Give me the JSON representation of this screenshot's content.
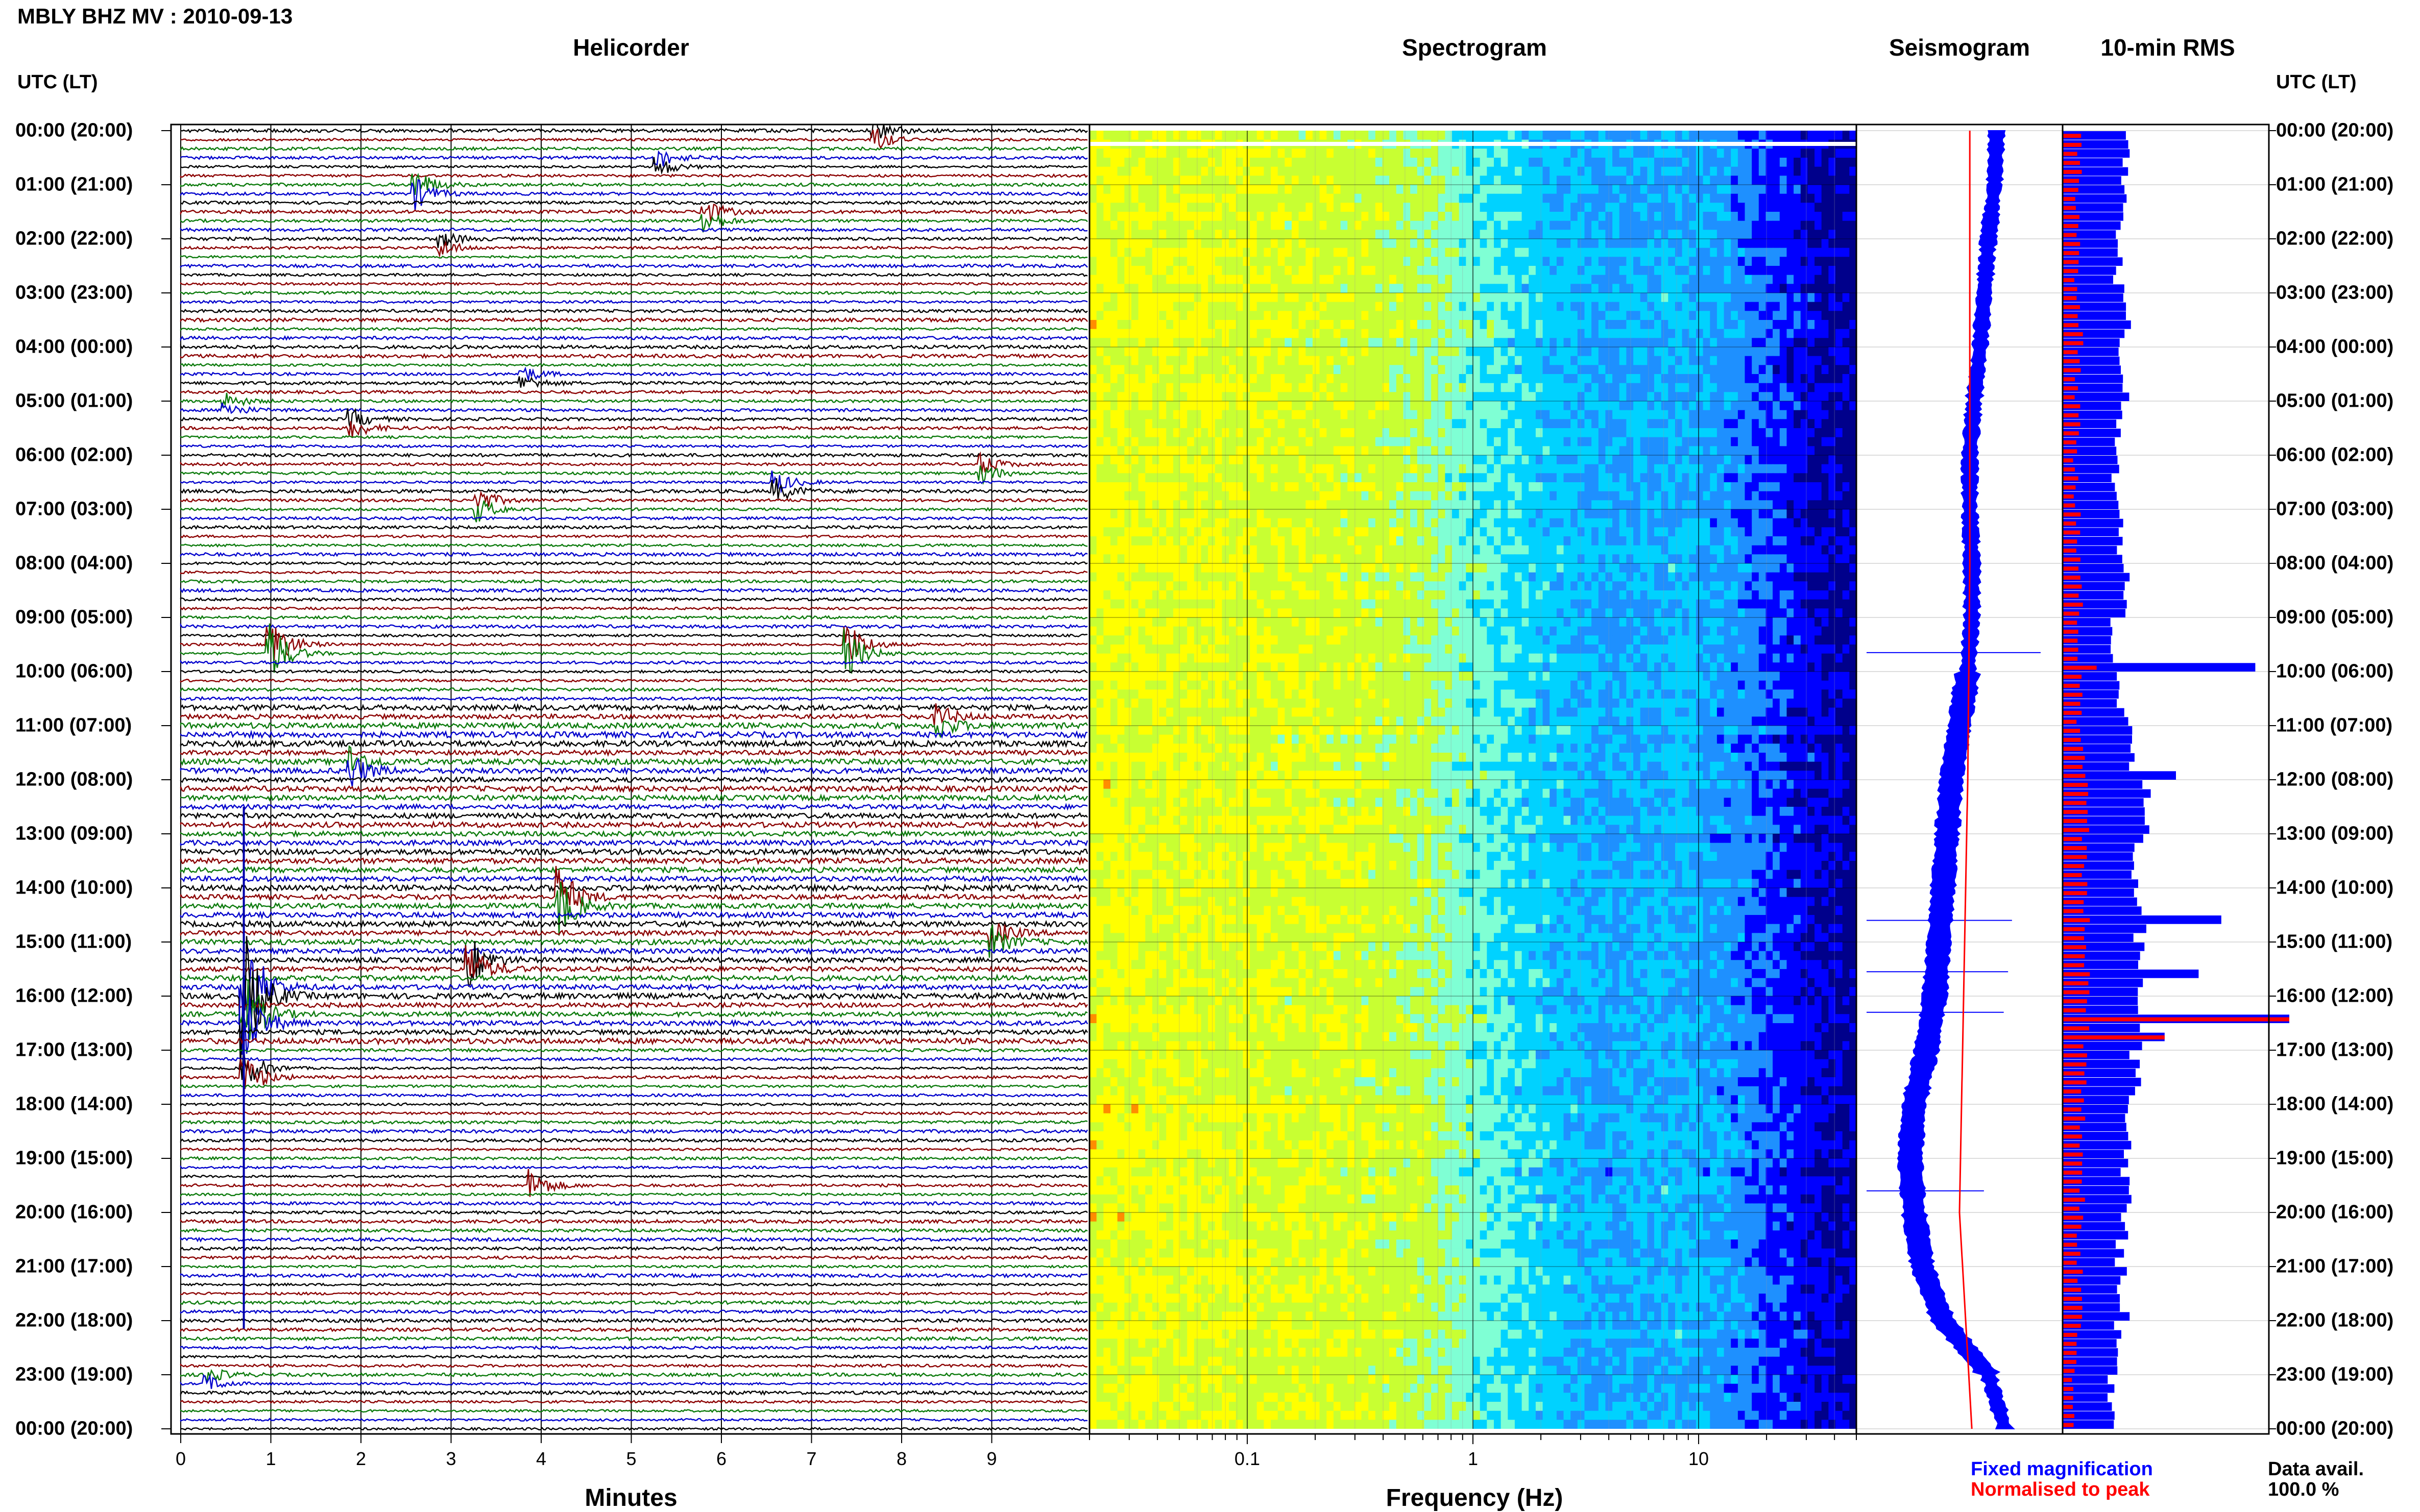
{
  "header": {
    "title": "MBLY BHZ MV : 2010-09-13",
    "left_axis_title": "UTC (LT)",
    "right_axis_title": "UTC (LT)"
  },
  "panels": {
    "helicorder": "Helicorder",
    "spectrogram": "Spectrogram",
    "seismogram": "Seismogram",
    "rms": "10-min RMS"
  },
  "hour_labels": [
    "00:00 (20:00)",
    "01:00 (21:00)",
    "02:00 (22:00)",
    "03:00 (23:00)",
    "04:00 (00:00)",
    "05:00 (01:00)",
    "06:00 (02:00)",
    "07:00 (03:00)",
    "08:00 (04:00)",
    "09:00 (05:00)",
    "10:00 (06:00)",
    "11:00 (07:00)",
    "12:00 (08:00)",
    "13:00 (09:00)",
    "14:00 (10:00)",
    "15:00 (11:00)",
    "16:00 (12:00)",
    "17:00 (13:00)",
    "18:00 (14:00)",
    "19:00 (15:00)",
    "20:00 (16:00)",
    "21:00 (17:00)",
    "22:00 (18:00)",
    "23:00 (19:00)",
    "00:00 (20:00)"
  ],
  "legend": {
    "fixed": "Fixed magnification",
    "normalised": "Normalised to peak",
    "avail_label": "Data avail.",
    "avail_value": "100.0 %"
  },
  "colors": {
    "trace_cycle": [
      "#000000",
      "#8b0000",
      "#0b7a0b",
      "#0000cc"
    ],
    "fixed": "#0000ff",
    "normalised": "#ff0000"
  },
  "chart_data": [
    {
      "type": "line",
      "name": "Helicorder",
      "xlabel": "Minutes",
      "x_ticks": [
        0,
        1,
        2,
        3,
        4,
        5,
        6,
        7,
        8,
        9
      ],
      "xlim": [
        0,
        10
      ],
      "lines_per_hour": 6,
      "y_range_hours": [
        0,
        24
      ],
      "events": [
        {
          "hour": 0.02,
          "minute": 7.7,
          "amp": 0.6
        },
        {
          "hour": 0.55,
          "minute": 5.3,
          "amp": 0.5
        },
        {
          "hour": 1.1,
          "minute": 2.6,
          "amp": 0.8
        },
        {
          "hour": 1.55,
          "minute": 5.8,
          "amp": 0.7
        },
        {
          "hour": 2.15,
          "minute": 2.9,
          "amp": 0.4
        },
        {
          "hour": 4.6,
          "minute": 3.8,
          "amp": 0.4
        },
        {
          "hour": 5.05,
          "minute": 0.5,
          "amp": 0.4
        },
        {
          "hour": 5.45,
          "minute": 1.9,
          "amp": 0.5
        },
        {
          "hour": 6.3,
          "minute": 8.9,
          "amp": 0.5
        },
        {
          "hour": 6.65,
          "minute": 6.6,
          "amp": 0.6
        },
        {
          "hour": 6.85,
          "minute": 3.3,
          "amp": 0.6
        },
        {
          "hour": 9.55,
          "minute": 1.0,
          "amp": 1.6
        },
        {
          "hour": 9.6,
          "minute": 7.4,
          "amp": 1.2
        },
        {
          "hour": 10.85,
          "minute": 8.4,
          "amp": 0.6
        },
        {
          "hour": 11.8,
          "minute": 1.9,
          "amp": 0.8
        },
        {
          "hour": 14.3,
          "minute": 4.2,
          "amp": 1.6
        },
        {
          "hour": 14.9,
          "minute": 9.0,
          "amp": 0.7
        },
        {
          "hour": 15.4,
          "minute": 3.2,
          "amp": 1.3
        },
        {
          "hour": 16.0,
          "minute": 0.7,
          "amp": 3.5
        },
        {
          "hour": 16.35,
          "minute": 0.7,
          "amp": 2.2
        },
        {
          "hour": 17.4,
          "minute": 0.7,
          "amp": 1.2
        },
        {
          "hour": 19.5,
          "minute": 3.9,
          "amp": 0.8
        },
        {
          "hour": 23.15,
          "minute": 0.3,
          "amp": 0.4
        }
      ]
    },
    {
      "type": "heatmap",
      "name": "Spectrogram",
      "xlabel": "Frequency (Hz)",
      "x_scale": "log",
      "xlim": [
        0.02,
        50
      ],
      "x_tick_labels": [
        {
          "value": 0.1,
          "label": "0.1"
        },
        {
          "value": 1,
          "label": "1"
        },
        {
          "value": 10,
          "label": "10"
        }
      ],
      "colormap": [
        "#00008b",
        "#0000ff",
        "#1e90ff",
        "#00d2ff",
        "#7fffd4",
        "#c8ff32",
        "#ffff00",
        "#ff8c00"
      ],
      "energy_profile": [
        {
          "freq": 0.02,
          "level": 0.78
        },
        {
          "freq": 0.1,
          "level": 0.74
        },
        {
          "freq": 0.3,
          "level": 0.72
        },
        {
          "freq": 0.6,
          "level": 0.66
        },
        {
          "freq": 1.0,
          "level": 0.55
        },
        {
          "freq": 2.0,
          "level": 0.44
        },
        {
          "freq": 4.0,
          "level": 0.36
        },
        {
          "freq": 8.0,
          "level": 0.4
        },
        {
          "freq": 15.0,
          "level": 0.32
        },
        {
          "freq": 30.0,
          "level": 0.16
        },
        {
          "freq": 50.0,
          "level": 0.08
        }
      ]
    },
    {
      "type": "line",
      "name": "Seismogram",
      "series": [
        {
          "name": "Fixed magnification",
          "hours": [
            0,
            1,
            2,
            3,
            4,
            5,
            6,
            7,
            8,
            9,
            10,
            11,
            12,
            13,
            14,
            15,
            16,
            17,
            18,
            19,
            20,
            21,
            22,
            23,
            24
          ],
          "values": [
            0.68,
            0.67,
            0.64,
            0.62,
            0.6,
            0.57,
            0.55,
            0.55,
            0.56,
            0.56,
            0.54,
            0.5,
            0.46,
            0.44,
            0.42,
            0.4,
            0.38,
            0.34,
            0.28,
            0.26,
            0.28,
            0.32,
            0.42,
            0.64,
            0.72
          ]
        },
        {
          "name": "Normalised to peak",
          "hours": [
            0,
            4,
            8,
            12,
            16,
            20,
            24
          ],
          "values": [
            0.55,
            0.55,
            0.55,
            0.54,
            0.52,
            0.5,
            0.56
          ]
        }
      ],
      "spikes_hours": [
        9.65,
        14.6,
        15.55,
        16.3,
        19.6
      ]
    },
    {
      "type": "bar",
      "name": "10-min RMS",
      "orientation": "horizontal",
      "bins_per_hour": 6,
      "hourly_blue_level": [
        0.28,
        0.26,
        0.25,
        0.28,
        0.27,
        0.25,
        0.23,
        0.24,
        0.28,
        0.22,
        0.26,
        0.3,
        0.38,
        0.33,
        0.34,
        0.36,
        0.35,
        0.32,
        0.3,
        0.28,
        0.26,
        0.27,
        0.24,
        0.2,
        0.22
      ],
      "hourly_red_level": [
        0.07,
        0.06,
        0.06,
        0.07,
        0.06,
        0.06,
        0.05,
        0.06,
        0.07,
        0.06,
        0.07,
        0.08,
        0.1,
        0.09,
        0.1,
        0.1,
        0.1,
        0.09,
        0.08,
        0.08,
        0.07,
        0.07,
        0.06,
        0.05,
        0.06
      ],
      "peaks": [
        {
          "hour": 9.83,
          "blue": 0.85,
          "red": 0.15
        },
        {
          "hour": 11.8,
          "blue": 0.5,
          "red": 0.1
        },
        {
          "hour": 14.5,
          "blue": 0.7,
          "red": 0.12
        },
        {
          "hour": 15.5,
          "blue": 0.6,
          "red": 0.12
        },
        {
          "hour": 16.4,
          "blue": 1.0,
          "red": 1.0
        },
        {
          "hour": 16.6,
          "blue": 0.45,
          "red": 0.45
        }
      ]
    }
  ]
}
